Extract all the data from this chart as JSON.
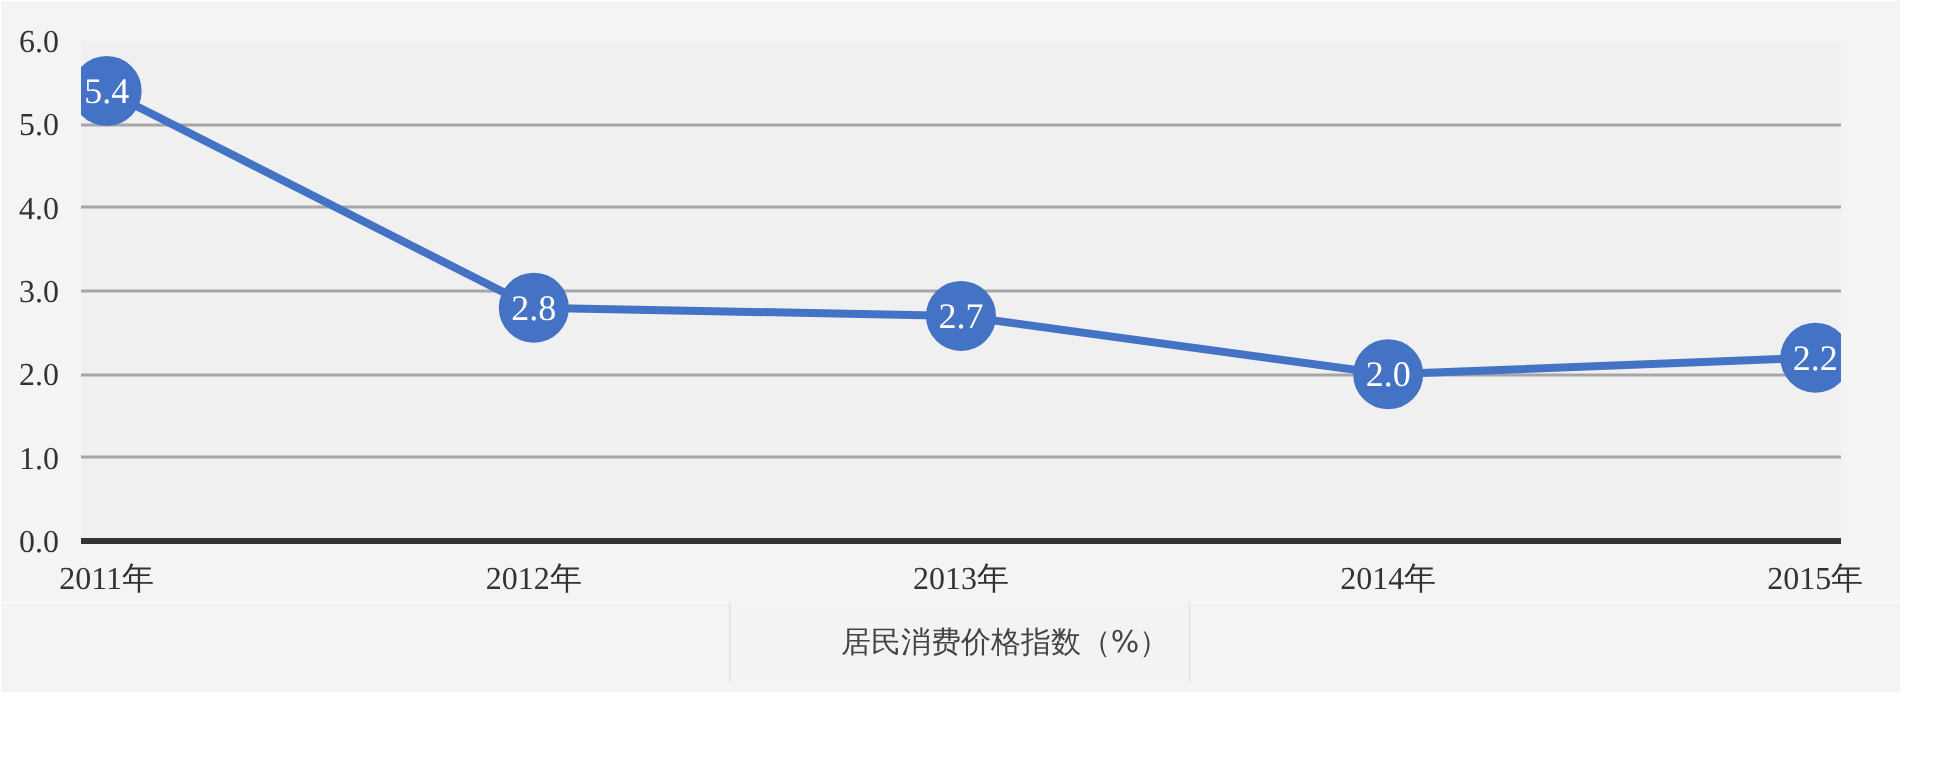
{
  "chart_data": {
    "type": "line",
    "categories": [
      "2011年",
      "2012年",
      "2013年",
      "2014年",
      "2015年"
    ],
    "series": [
      {
        "name": "居民消费价格指数（%）",
        "color": "#4472c4",
        "values": [
          5.4,
          2.8,
          2.7,
          2.0,
          2.2
        ],
        "value_labels": [
          "5.4",
          "2.8",
          "2.7",
          "2.0",
          "2.2"
        ]
      }
    ],
    "ylim": [
      0,
      6
    ],
    "yticks": [
      {
        "value": 0,
        "label": "0.0"
      },
      {
        "value": 1,
        "label": "1.0"
      },
      {
        "value": 2,
        "label": "2.0"
      },
      {
        "value": 3,
        "label": "3.0"
      },
      {
        "value": 4,
        "label": "4.0"
      },
      {
        "value": 5,
        "label": "5.0"
      },
      {
        "value": 6,
        "label": "6.0"
      }
    ],
    "grid": "y",
    "legend": "bottom",
    "marker": "circle",
    "line_style": "solid",
    "data_labels": true
  }
}
